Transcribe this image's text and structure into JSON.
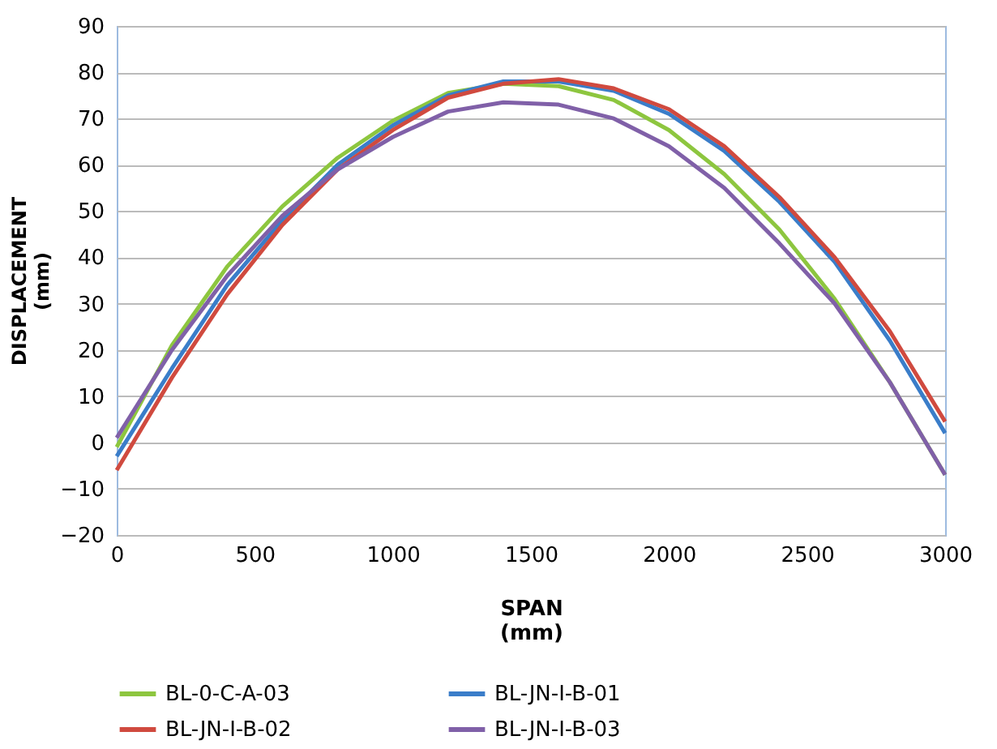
{
  "chart_data": {
    "type": "line",
    "xlabel": "SPAN\n(mm)",
    "ylabel": "DISPLACEMENT\n(mm)",
    "x": [
      0,
      200,
      400,
      600,
      800,
      1000,
      1200,
      1400,
      1600,
      1800,
      2000,
      2200,
      2400,
      2600,
      2800,
      3000
    ],
    "series": [
      {
        "name": "BL-0-C-A-03",
        "color": "#8dc63f",
        "values": [
          -1,
          21,
          38,
          51,
          61.5,
          69.5,
          75.5,
          77.5,
          77,
          74,
          67.5,
          58,
          46,
          31,
          13,
          -7
        ]
      },
      {
        "name": "BL-JN-I-B-01",
        "color": "#3a7dc9",
        "values": [
          -3,
          16,
          34,
          48,
          60,
          68.5,
          75,
          78,
          78,
          76,
          71,
          63,
          52,
          39,
          22,
          2
        ]
      },
      {
        "name": "BL-JN-I-B-02",
        "color": "#d04a3f",
        "values": [
          -6,
          14,
          32,
          47,
          59,
          67.5,
          74.5,
          77.5,
          78.5,
          76.5,
          72,
          64,
          53,
          40,
          24,
          4.5
        ]
      },
      {
        "name": "BL-JN-I-B-03",
        "color": "#8060a8",
        "values": [
          1,
          20,
          36,
          49,
          59,
          66,
          71.5,
          73.5,
          73,
          70,
          64,
          55,
          43,
          30,
          13,
          -7
        ]
      }
    ],
    "xlim": [
      0,
      3000
    ],
    "xticks": [
      0,
      500,
      1000,
      1500,
      2000,
      2500,
      3000
    ],
    "ylim": [
      -20,
      90
    ],
    "yticks": [
      -20,
      -10,
      0,
      10,
      20,
      30,
      40,
      50,
      60,
      70,
      80,
      90
    ],
    "grid": "y",
    "legend": "bottom",
    "marker": "none",
    "line_style": "solid"
  }
}
